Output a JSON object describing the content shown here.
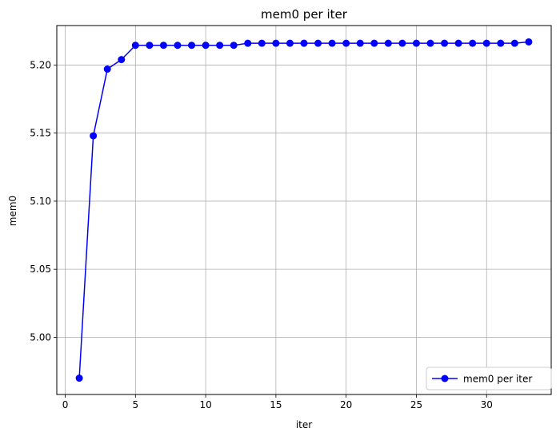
{
  "chart_data": {
    "type": "line",
    "title": "mem0 per iter",
    "xlabel": "iter",
    "ylabel": "mem0",
    "xlim": [
      -0.6,
      34.6
    ],
    "ylim": [
      4.958,
      5.229
    ],
    "xticks": [
      0,
      5,
      10,
      15,
      20,
      25,
      30
    ],
    "yticks": [
      5.0,
      5.05,
      5.1,
      5.15,
      5.2
    ],
    "ytick_decimals": 2,
    "grid": true,
    "legend_position": "lower-right",
    "series": [
      {
        "name": "mem0 per iter",
        "color": "#0000ff",
        "marker": "circle",
        "x": [
          1,
          2,
          3,
          4,
          5,
          6,
          7,
          8,
          9,
          10,
          11,
          12,
          13,
          14,
          15,
          16,
          17,
          18,
          19,
          20,
          21,
          22,
          23,
          24,
          25,
          26,
          27,
          28,
          29,
          30,
          31,
          32,
          33
        ],
        "y": [
          4.97,
          5.148,
          5.197,
          5.204,
          5.2145,
          5.2145,
          5.2145,
          5.2145,
          5.2145,
          5.2145,
          5.2145,
          5.2145,
          5.216,
          5.216,
          5.216,
          5.216,
          5.216,
          5.216,
          5.216,
          5.216,
          5.216,
          5.216,
          5.216,
          5.216,
          5.216,
          5.216,
          5.216,
          5.216,
          5.216,
          5.216,
          5.216,
          5.216,
          5.217
        ]
      }
    ]
  }
}
